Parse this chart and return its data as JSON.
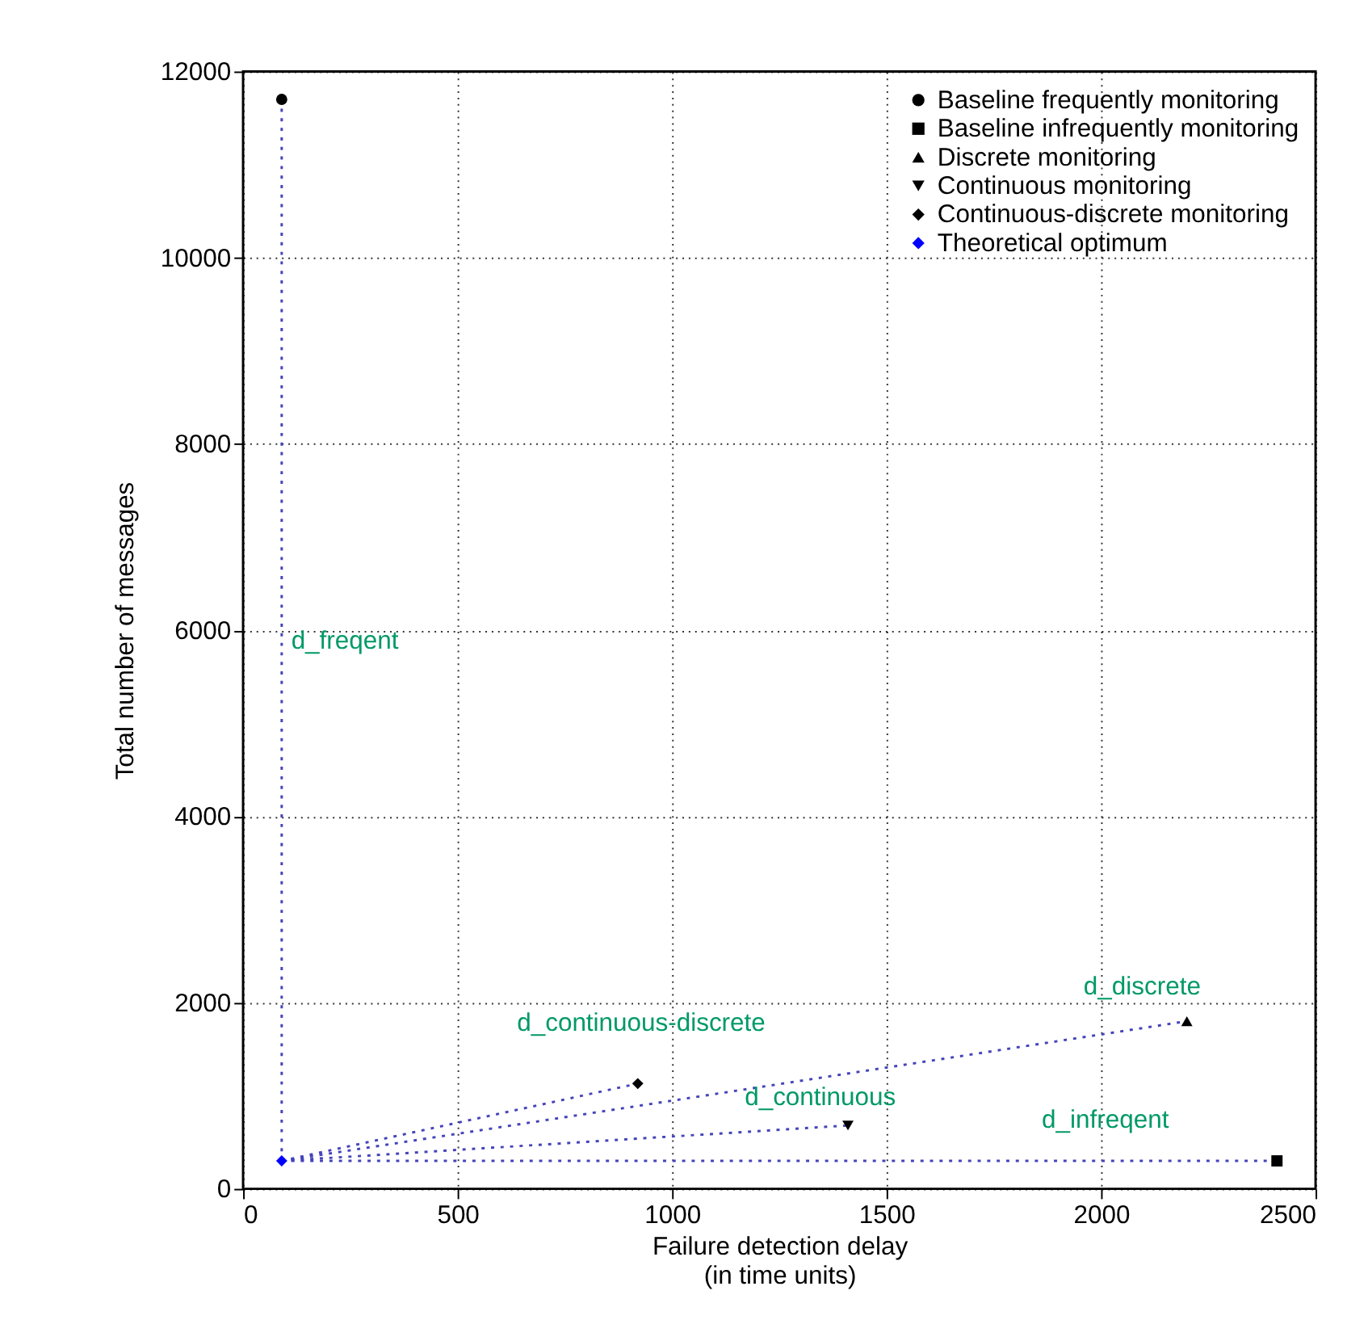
{
  "chart_data": {
    "type": "scatter",
    "xlabel": "Failure detection delay\n(in time units)",
    "ylabel": "Total number of messages",
    "xlim": [
      0,
      2500
    ],
    "xticks": [
      0,
      500,
      1000,
      1500,
      2000,
      2500
    ],
    "ylim": [
      0,
      12000
    ],
    "yticks": [
      0,
      2000,
      4000,
      6000,
      8000,
      10000,
      12000
    ],
    "grid": true,
    "legend": "top right",
    "series": [
      {
        "type": "line",
        "color": "#4444bb",
        "line_style": "dotted",
        "marker": "none",
        "x": [
          90,
          90
        ],
        "values": [
          300,
          11700
        ]
      },
      {
        "type": "line",
        "color": "#4444bb",
        "line_style": "dotted",
        "marker": "none",
        "x": [
          90,
          2410
        ],
        "values": [
          300,
          300
        ]
      },
      {
        "type": "line",
        "color": "#4444bb",
        "line_style": "dotted",
        "marker": "none",
        "x": [
          90,
          2200
        ],
        "values": [
          300,
          1800
        ]
      },
      {
        "type": "line",
        "color": "#4444bb",
        "line_style": "dotted",
        "marker": "none",
        "x": [
          90,
          1410
        ],
        "values": [
          300,
          680
        ]
      },
      {
        "type": "line",
        "color": "#4444bb",
        "line_style": "dotted",
        "marker": "none",
        "x": [
          90,
          920
        ],
        "values": [
          300,
          1130
        ]
      },
      {
        "name": "Baseline frequently monitoring",
        "color": "#000000",
        "marker": "circle",
        "x": [
          90
        ],
        "values": [
          11700
        ]
      },
      {
        "name": "Baseline infrequently monitoring",
        "color": "#000000",
        "marker": "square",
        "x": [
          2410
        ],
        "values": [
          300
        ]
      },
      {
        "name": "Discrete monitoring",
        "color": "#000000",
        "marker": "triangle",
        "x": [
          2200
        ],
        "values": [
          1800
        ]
      },
      {
        "name": "Continuous monitoring",
        "color": "#000000",
        "marker": "triangle-down",
        "x": [
          1410
        ],
        "values": [
          680
        ]
      },
      {
        "name": "Continuous-discrete monitoring",
        "color": "#000000",
        "marker": "diamond",
        "x": [
          920
        ],
        "values": [
          1130
        ]
      },
      {
        "name": "Theoretical optimum",
        "color": "#0000ff",
        "marker": "diamond",
        "x": [
          90
        ],
        "values": [
          300
        ]
      }
    ],
    "annotations": [
      "d_freqent",
      "d_infreqent",
      "d_discrete",
      "d_continuous",
      "d_continuous-discrete"
    ]
  }
}
